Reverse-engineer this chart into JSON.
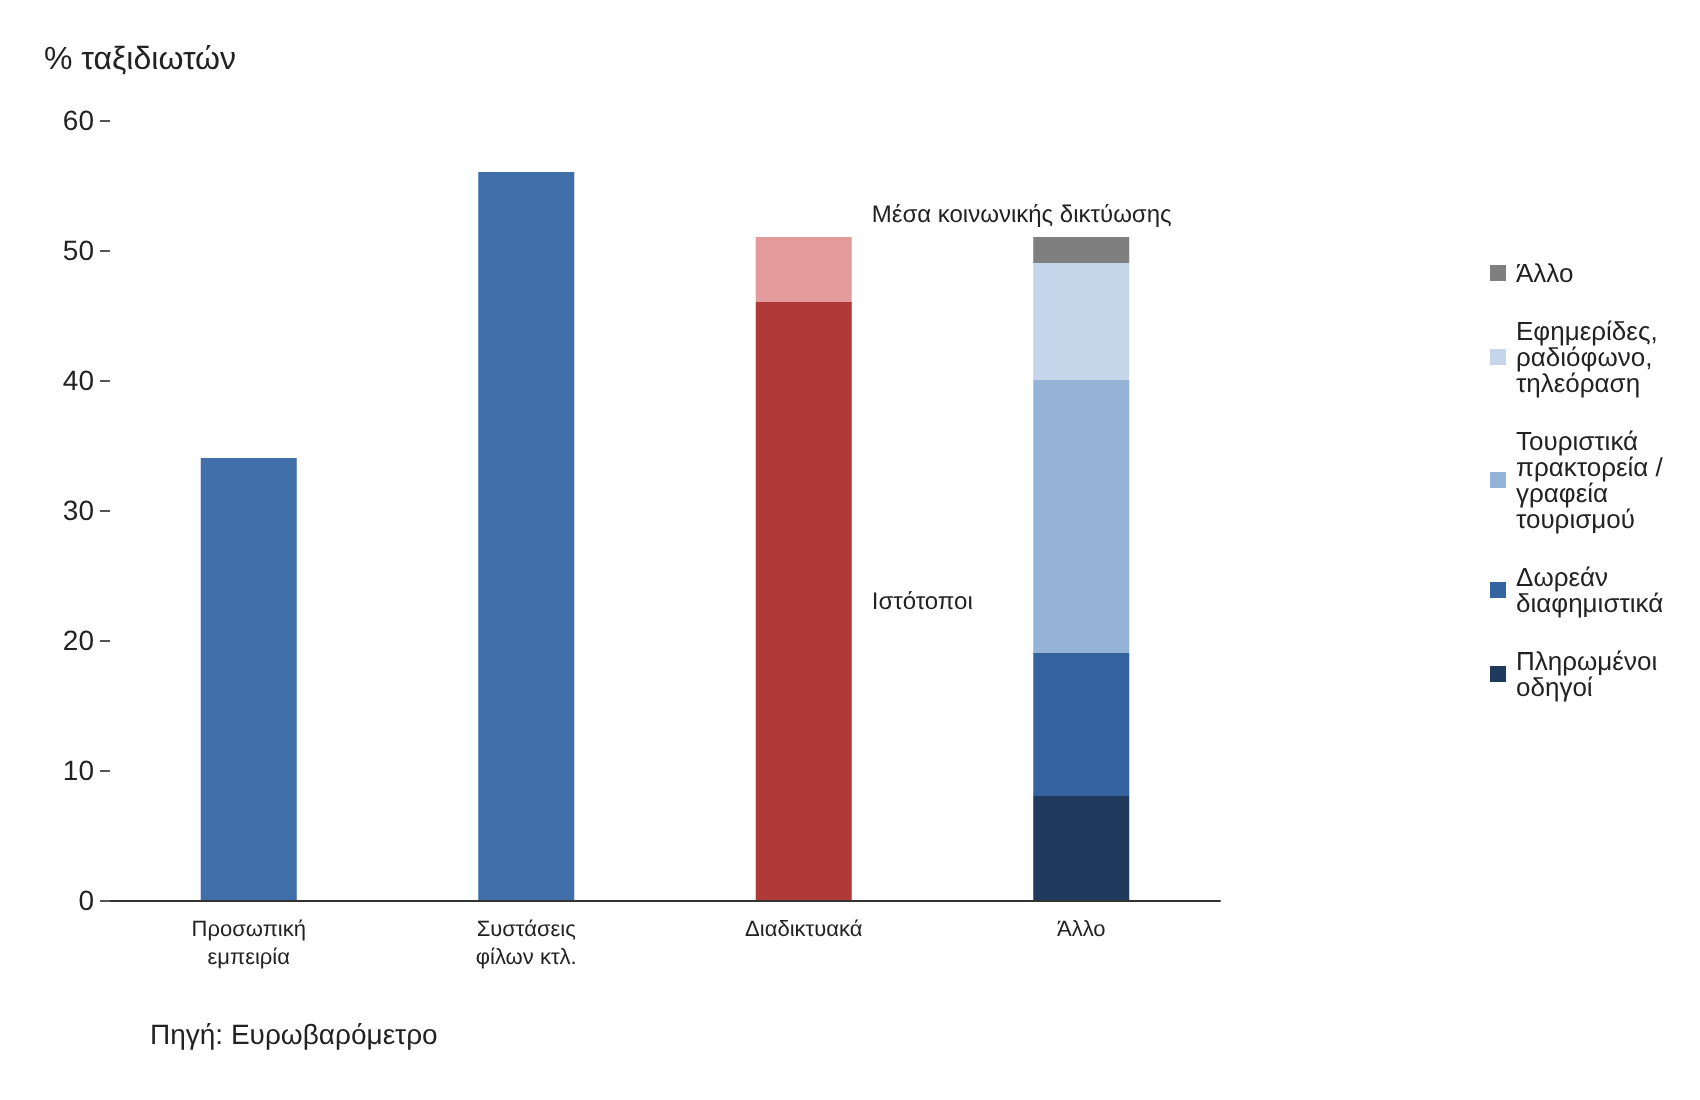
{
  "chart_data": {
    "type": "bar",
    "stacked": true,
    "ylabel": "% ταξιδιωτών",
    "categories": [
      "Προσωπική εμπειρία",
      "Συστάσεις φίλων κτλ.",
      "Διαδικτυακά",
      "Άλλο"
    ],
    "series": [
      {
        "color": "#3f6ea8",
        "values": [
          34,
          56,
          null,
          null
        ]
      },
      {
        "name": "Ιστότοποι",
        "color": "#b03a37",
        "values": [
          null,
          null,
          46,
          null
        ]
      },
      {
        "name": "Μέσα κοινωνικής δικτύωσης",
        "color": "#e39a9a",
        "values": [
          null,
          null,
          5,
          null
        ]
      },
      {
        "name": "Πληρωμένοι οδηγοί",
        "color": "#1f3a5c",
        "values": [
          null,
          null,
          null,
          8
        ]
      },
      {
        "name": "Δωρεάν διαφημιστικά",
        "color": "#3463a0",
        "values": [
          null,
          null,
          null,
          11
        ]
      },
      {
        "name": "Τουριστικά πρακτορεία / γραφεία τουρισμού",
        "color": "#95b3d7",
        "values": [
          null,
          null,
          null,
          21
        ]
      },
      {
        "name": "Εφημερίδες, ραδιόφωνο, τηλεόραση",
        "color": "#c5d6eb",
        "values": [
          null,
          null,
          null,
          9
        ]
      },
      {
        "name": "Άλλο",
        "color": "#7f7f7f",
        "values": [
          null,
          null,
          null,
          2
        ]
      }
    ],
    "ylim": [
      0,
      60
    ],
    "yticks": [
      0,
      10,
      20,
      30,
      40,
      50,
      60
    ],
    "grid": false,
    "legend": "right",
    "annotations": [
      "Πηγή: Ευρωβαρόμετρο"
    ]
  }
}
